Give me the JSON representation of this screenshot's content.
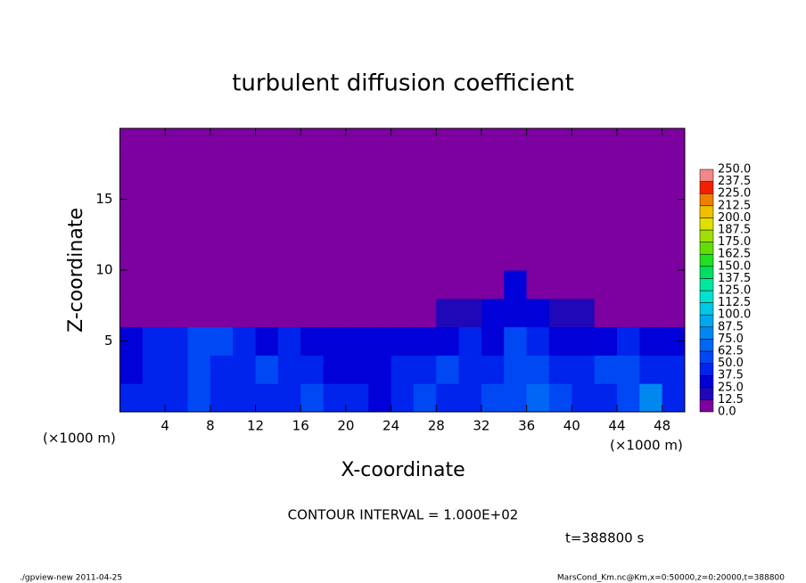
{
  "chart_data": {
    "type": "contour",
    "title": "turbulent diffusion coefficient",
    "xlabel": "X-coordinate",
    "ylabel": "Z-coordinate",
    "x_unit_label": "(×1000 m)",
    "contour_interval": "CONTOUR INTERVAL = 1.000E+02",
    "time_label": "t=388800 s",
    "footer_left": "./gpview-new   2011-04-25",
    "footer_right": "MarsCond_Km.nc@Km,x=0:50000,z=0:20000,t=388800",
    "xlim": [
      0,
      50
    ],
    "ylim": [
      0,
      20
    ],
    "xticks": [
      4,
      8,
      12,
      16,
      20,
      24,
      28,
      32,
      36,
      40,
      44,
      48
    ],
    "yticks": [
      5,
      10,
      15
    ],
    "x": [
      1,
      3,
      5,
      7,
      9,
      11,
      13,
      15,
      17,
      19,
      21,
      23,
      25,
      27,
      29,
      31,
      33,
      35,
      37,
      39,
      41,
      43,
      45,
      47,
      49
    ],
    "y": [
      1,
      3,
      5,
      7,
      9,
      11,
      13,
      15,
      17,
      19
    ],
    "z": [
      [
        40,
        45,
        38,
        50,
        45,
        42,
        45,
        40,
        50,
        45,
        40,
        35,
        45,
        50,
        48,
        40,
        55,
        62,
        70,
        55,
        45,
        40,
        55,
        75,
        40
      ],
      [
        35,
        40,
        45,
        55,
        45,
        40,
        50,
        45,
        40,
        30,
        30,
        35,
        40,
        45,
        55,
        45,
        40,
        62,
        55,
        40,
        40,
        55,
        60,
        45,
        40
      ],
      [
        30,
        45,
        40,
        50,
        55,
        40,
        35,
        40,
        30,
        25,
        30,
        28,
        30,
        30,
        35,
        40,
        35,
        50,
        40,
        30,
        30,
        35,
        40,
        35,
        30
      ],
      [
        5,
        10,
        12,
        10,
        8,
        10,
        10,
        12,
        10,
        5,
        0,
        0,
        5,
        10,
        15,
        20,
        25,
        35,
        30,
        20,
        15,
        12,
        10,
        10,
        8
      ],
      [
        0,
        0,
        0,
        0,
        0,
        0,
        0,
        0,
        0,
        0,
        0,
        0,
        0,
        0,
        0,
        0,
        0,
        30,
        0,
        0,
        0,
        0,
        0,
        0,
        0
      ],
      [
        0,
        0,
        0,
        0,
        0,
        0,
        0,
        0,
        0,
        0,
        0,
        0,
        0,
        0,
        0,
        0,
        0,
        0,
        0,
        0,
        0,
        0,
        0,
        0,
        0
      ],
      [
        0,
        0,
        0,
        0,
        0,
        0,
        0,
        0,
        0,
        0,
        0,
        0,
        0,
        0,
        0,
        0,
        0,
        0,
        0,
        0,
        0,
        0,
        0,
        0,
        0
      ],
      [
        0,
        0,
        0,
        0,
        0,
        0,
        0,
        0,
        0,
        0,
        0,
        0,
        0,
        0,
        0,
        0,
        0,
        0,
        0,
        0,
        0,
        0,
        0,
        0,
        0
      ],
      [
        0,
        0,
        0,
        0,
        0,
        0,
        0,
        0,
        0,
        0,
        0,
        0,
        0,
        0,
        0,
        0,
        0,
        0,
        0,
        0,
        0,
        0,
        0,
        0,
        0
      ],
      [
        0,
        0,
        0,
        0,
        0,
        0,
        0,
        0,
        0,
        0,
        0,
        0,
        0,
        0,
        0,
        0,
        0,
        0,
        0,
        0,
        0,
        0,
        0,
        0,
        0
      ]
    ],
    "levels": [
      {
        "value": 0,
        "label": "0.0"
      },
      {
        "value": 12.5,
        "label": "12.5"
      },
      {
        "value": 25,
        "label": "25.0"
      },
      {
        "value": 37.5,
        "label": "37.5"
      },
      {
        "value": 50,
        "label": "50.0"
      },
      {
        "value": 62.5,
        "label": "62.5"
      },
      {
        "value": 75,
        "label": "75.0"
      },
      {
        "value": 87.5,
        "label": "87.5"
      },
      {
        "value": 100,
        "label": "100.0"
      },
      {
        "value": 112.5,
        "label": "112.5"
      },
      {
        "value": 125,
        "label": "125.0"
      },
      {
        "value": 137.5,
        "label": "137.5"
      },
      {
        "value": 150,
        "label": "150.0"
      },
      {
        "value": 162.5,
        "label": "162.5"
      },
      {
        "value": 175,
        "label": "175.0"
      },
      {
        "value": 187.5,
        "label": "187.5"
      },
      {
        "value": 200,
        "label": "200.0"
      },
      {
        "value": 212.5,
        "label": "212.5"
      },
      {
        "value": 225,
        "label": "225.0"
      },
      {
        "value": 237.5,
        "label": "237.5"
      },
      {
        "value": 250,
        "label": "250.0"
      }
    ],
    "colors": [
      "#7d00a0",
      "#1e08b8",
      "#0000d8",
      "#0024ec",
      "#0048f4",
      "#0066f4",
      "#0088f0",
      "#00a8f0",
      "#00c8e8",
      "#00e2d0",
      "#00e8a0",
      "#00e060",
      "#20e020",
      "#60e000",
      "#a0e000",
      "#e0e000",
      "#f0c000",
      "#f08000",
      "#f02000",
      "#f08888"
    ]
  }
}
